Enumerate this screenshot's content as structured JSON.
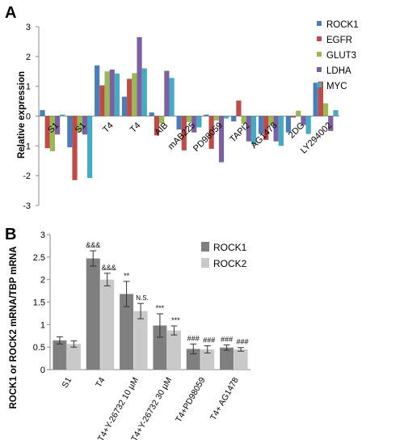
{
  "chart_data": [
    {
      "panel_label": "A",
      "type": "bar",
      "ylabel": "Relative expression",
      "ylim": [
        -3,
        3
      ],
      "yticks": [
        -3,
        -2,
        -1,
        0,
        1,
        2,
        3
      ],
      "grid": false,
      "legend_position": "right",
      "categories": [
        "S1",
        "S1",
        "T4",
        "T4",
        "AIB",
        "mAB225",
        "PD98059",
        "TAPI2",
        "AG1478",
        "2DG",
        "LY294002"
      ],
      "series": [
        {
          "name": "ROCK1",
          "color": "#4a7ebb",
          "values": [
            0.2,
            -1.05,
            1.7,
            0.65,
            0.12,
            -0.45,
            0.05,
            -0.18,
            -0.6,
            -0.55,
            1.12
          ]
        },
        {
          "name": "EGFR",
          "color": "#be4b48",
          "values": [
            -1.08,
            -2.15,
            1.03,
            1.25,
            -0.65,
            -1.15,
            -1.1,
            0.52,
            -0.8,
            -0.05,
            1.16
          ]
        },
        {
          "name": "GLUT3",
          "color": "#98b954",
          "values": [
            -1.18,
            -0.55,
            1.5,
            1.44,
            -0.25,
            -0.2,
            -0.15,
            -0.25,
            -0.3,
            0.18,
            0.43
          ]
        },
        {
          "name": "LDHA",
          "color": "#7d60a0",
          "values": [
            -0.62,
            -0.62,
            1.56,
            2.65,
            1.52,
            -0.55,
            -1.55,
            -0.85,
            -0.85,
            -0.3,
            -0.5
          ]
        },
        {
          "name": "MYC",
          "color": "#46aac5",
          "values": [
            0.05,
            -2.08,
            1.43,
            1.6,
            1.28,
            -0.38,
            -0.08,
            -0.95,
            -1.0,
            -0.6,
            0.2
          ]
        }
      ]
    },
    {
      "panel_label": "B",
      "type": "bar",
      "ylabel": "ROCK1 or ROCK2  mRNA/TBP mRNA",
      "ylim": [
        0,
        3
      ],
      "yticks": [
        0,
        0.5,
        1,
        1.5,
        2,
        2.5,
        3
      ],
      "grid": false,
      "legend_position": "top-right",
      "categories": [
        "S1",
        "T4",
        "T4+Y-26732  10 µM",
        "T4+Y-26732  30 µM",
        "T4+PD98059",
        "T4+ AG1478"
      ],
      "series": [
        {
          "name": "ROCK1",
          "color": "#7f7f7f",
          "values": [
            0.65,
            2.47,
            1.68,
            0.98,
            0.46,
            0.49
          ],
          "errors": [
            0.08,
            0.17,
            0.28,
            0.26,
            0.11,
            0.06
          ],
          "annotations": [
            "",
            "&&&",
            "**",
            "***",
            "###",
            "###"
          ]
        },
        {
          "name": "ROCK2",
          "color": "#c9c9c9",
          "values": [
            0.57,
            2.0,
            1.3,
            0.87,
            0.45,
            0.45
          ],
          "errors": [
            0.07,
            0.14,
            0.17,
            0.1,
            0.08,
            0.04
          ],
          "annotations": [
            "",
            "&&&",
            "N.S.",
            "***",
            "###",
            "###"
          ]
        }
      ]
    }
  ]
}
